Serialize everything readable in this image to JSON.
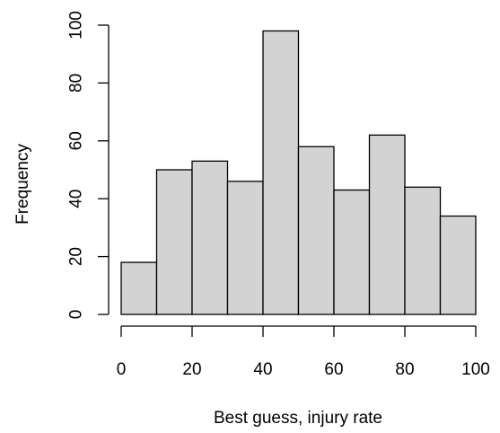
{
  "chart_data": {
    "type": "bar",
    "title": "",
    "xlabel": "Best guess, injury rate",
    "ylabel": "Frequency",
    "bins": [
      {
        "from": 0,
        "to": 10,
        "count": 18
      },
      {
        "from": 10,
        "to": 20,
        "count": 50
      },
      {
        "from": 20,
        "to": 30,
        "count": 53
      },
      {
        "from": 30,
        "to": 40,
        "count": 46
      },
      {
        "from": 40,
        "to": 50,
        "count": 98
      },
      {
        "from": 50,
        "to": 60,
        "count": 58
      },
      {
        "from": 60,
        "to": 70,
        "count": 43
      },
      {
        "from": 70,
        "to": 80,
        "count": 62
      },
      {
        "from": 80,
        "to": 90,
        "count": 44
      },
      {
        "from": 90,
        "to": 100,
        "count": 34
      }
    ],
    "xlim": [
      0,
      100
    ],
    "ylim": [
      0,
      100
    ],
    "xticks": [
      0,
      20,
      40,
      60,
      80,
      100
    ],
    "yticks": [
      0,
      20,
      40,
      60,
      80,
      100
    ],
    "bar_fill": "#d3d3d3",
    "bar_stroke": "#000000",
    "grid": false,
    "legend": "none"
  }
}
